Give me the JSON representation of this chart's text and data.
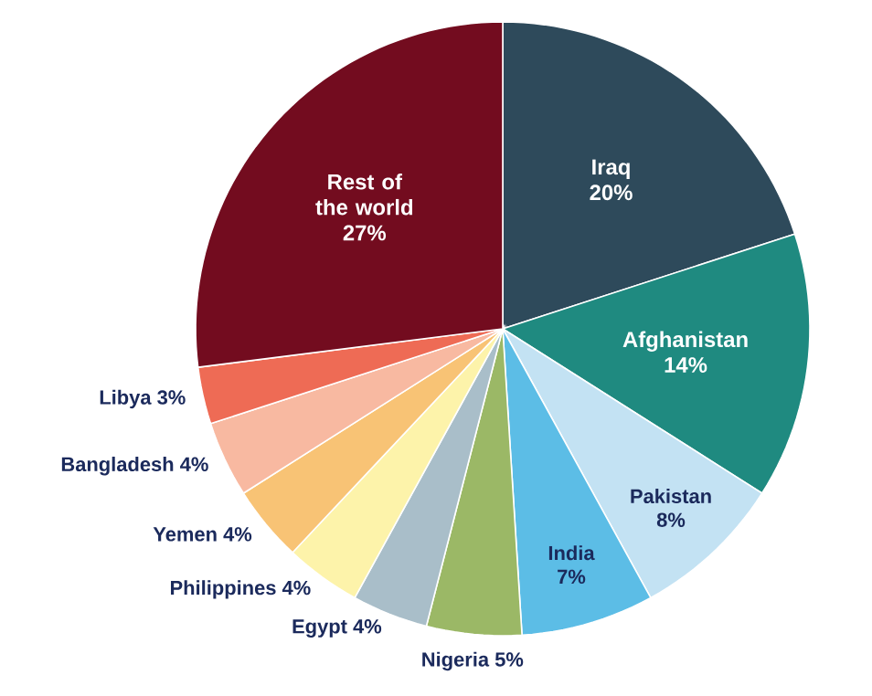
{
  "chart_data": {
    "type": "pie",
    "categories": [
      "Iraq",
      "Afghanistan",
      "Pakistan",
      "India",
      "Nigeria",
      "Egypt",
      "Philippines",
      "Yemen",
      "Bangladesh",
      "Libya",
      "Rest of the world"
    ],
    "values": [
      20,
      14,
      8,
      7,
      5,
      4,
      4,
      4,
      4,
      3,
      27
    ],
    "value_labels": [
      "20%",
      "14%",
      "8%",
      "7%",
      "5%",
      "4%",
      "4%",
      "4%",
      "4%",
      "3%",
      "27%"
    ],
    "colors": [
      "#2e4a5b",
      "#1f8a80",
      "#c3e2f3",
      "#5cbde6",
      "#9bb866",
      "#a9bec9",
      "#fdf3aa",
      "#f8c375",
      "#f8b9a1",
      "#ee6b55",
      "#730c1f"
    ]
  }
}
